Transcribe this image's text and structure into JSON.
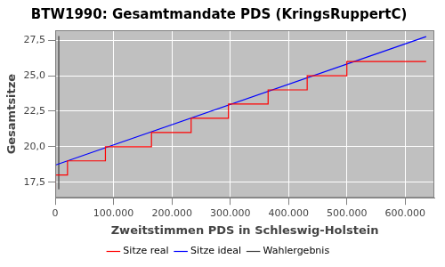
{
  "chart_data": {
    "type": "line",
    "title": "BTW1990: Gesamtmandate PDS (KringsRuppertC)",
    "x_label": "Zweitstimmen PDS in Schleswig-Holstein",
    "y_label": "Gesamtsitze",
    "xlim": [
      0,
      650000
    ],
    "xticks": [
      0,
      {
        "value": 100000,
        "label": "100.000"
      },
      {
        "value": 200000,
        "label": "200.000"
      },
      {
        "value": 300000,
        "label": "300.000"
      },
      {
        "value": 400000,
        "label": "400.000"
      },
      {
        "value": 500000,
        "label": "500.000"
      },
      {
        "value": 600000,
        "label": "600.000"
      }
    ],
    "ylim": [
      16.4,
      28.2
    ],
    "yticks": [
      {
        "value": 17.5,
        "label": "17,5"
      },
      {
        "value": 20,
        "label": "20,0"
      },
      {
        "value": 22.5,
        "label": "22,5"
      },
      {
        "value": 25,
        "label": "25,0"
      },
      {
        "value": 27.5,
        "label": "27,5"
      }
    ],
    "grid": true,
    "legend": "bottom",
    "series": [
      {
        "name": "Sitze real",
        "color": "#ff0000",
        "line_style": "stepped",
        "x": [
          0,
          21000,
          86000,
          165000,
          233000,
          297000,
          365000,
          432000,
          500000,
          570000,
          636000
        ],
        "values": [
          17,
          18,
          19,
          20,
          21,
          22,
          23,
          24,
          25,
          26,
          26
        ]
      },
      {
        "name": "Sitze ideal",
        "color": "#0000ff",
        "line_style": "solid",
        "x": [
          0,
          636000
        ],
        "values": [
          18.7,
          27.75
        ]
      },
      {
        "name": "Wahlergebnis",
        "color": "#404040",
        "line_style": "solid",
        "x": [
          6000,
          6000
        ],
        "values": [
          17,
          27.8
        ]
      }
    ]
  }
}
